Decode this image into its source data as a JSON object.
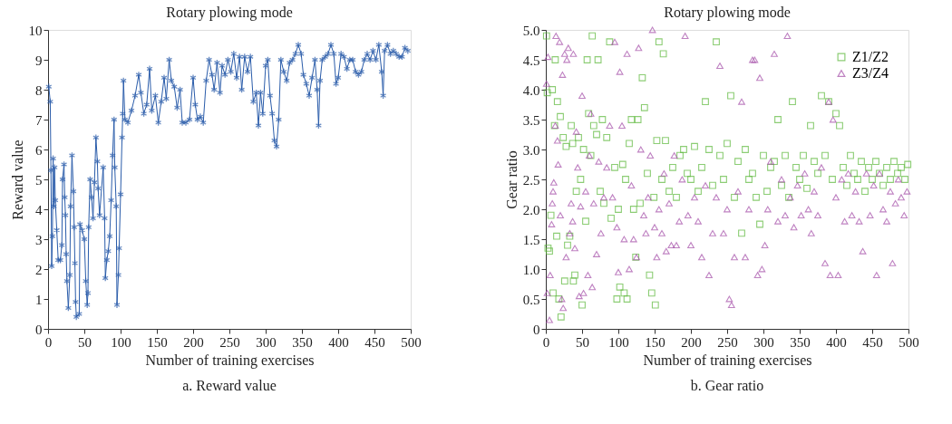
{
  "chart_data": [
    {
      "type": "line",
      "title": "Rotary plowing mode",
      "xlabel": "Number of training exercises",
      "ylabel": "Reward value",
      "annotations": [
        "a. Reward value"
      ],
      "xlim": [
        0,
        500
      ],
      "xticks": [
        0,
        50,
        100,
        150,
        200,
        250,
        300,
        350,
        400,
        450,
        500
      ],
      "ylim": [
        0,
        10
      ],
      "yticks": [
        0,
        1,
        2,
        3,
        4,
        5,
        6,
        7,
        8,
        9,
        10
      ],
      "grid": false,
      "marker": "cross",
      "line_style": "solid",
      "series": [
        {
          "color": "#2a5caa",
          "x": [
            1,
            3,
            4,
            5,
            6,
            7,
            8,
            9,
            10,
            12,
            14,
            17,
            19,
            20,
            22,
            23,
            24,
            25,
            26,
            28,
            30,
            31,
            33,
            35,
            36,
            37,
            38,
            39,
            43,
            44,
            47,
            50,
            52,
            54,
            55,
            56,
            58,
            60,
            62,
            64,
            66,
            68,
            69,
            71,
            76,
            78,
            79,
            81,
            83,
            85,
            87,
            89,
            91,
            92,
            94,
            95,
            97,
            98,
            100,
            102,
            103,
            104,
            106,
            110,
            115,
            120,
            125,
            128,
            132,
            136,
            140,
            143,
            148,
            152,
            156,
            160,
            163,
            167,
            170,
            174,
            178,
            182,
            185,
            190,
            195,
            200,
            203,
            206,
            210,
            214,
            218,
            222,
            226,
            229,
            233,
            237,
            240,
            244,
            248,
            252,
            256,
            260,
            264,
            267,
            271,
            275,
            279,
            283,
            287,
            290,
            293,
            296,
            300,
            303,
            306,
            309,
            312,
            315,
            318,
            321,
            325,
            329,
            333,
            337,
            341,
            345,
            349,
            352,
            356,
            360,
            364,
            368,
            371,
            373,
            375,
            378,
            382,
            386,
            390,
            394,
            397,
            400,
            404,
            408,
            412,
            416,
            420,
            424,
            428,
            432,
            436,
            440,
            444,
            448,
            452,
            456,
            460,
            462,
            464,
            468,
            472,
            476,
            480,
            484,
            488,
            492,
            496
          ],
          "values": [
            8.1,
            7.6,
            5.3,
            2.1,
            3.1,
            5.7,
            4.1,
            5.4,
            4.3,
            3.3,
            2.3,
            2.3,
            2.8,
            5.0,
            5.5,
            4.4,
            3.8,
            2.5,
            1.6,
            0.7,
            1.8,
            4.1,
            5.8,
            4.6,
            3.4,
            2.2,
            0.9,
            0.4,
            0.5,
            3.5,
            3.3,
            3.0,
            1.6,
            0.8,
            1.2,
            3.4,
            5.0,
            4.4,
            3.7,
            4.9,
            6.4,
            5.6,
            4.7,
            3.8,
            5.4,
            3.7,
            1.7,
            2.3,
            2.6,
            3.1,
            4.3,
            5.8,
            7.0,
            5.4,
            4.1,
            0.8,
            1.8,
            2.7,
            4.5,
            6.4,
            7.2,
            8.3,
            7.0,
            6.9,
            7.3,
            7.8,
            8.5,
            7.9,
            7.2,
            7.5,
            8.7,
            7.3,
            7.8,
            6.9,
            7.6,
            8.4,
            7.7,
            9.0,
            8.3,
            8.1,
            7.4,
            8.0,
            6.9,
            6.9,
            7.0,
            8.4,
            7.5,
            7.0,
            7.1,
            6.9,
            8.3,
            9.0,
            8.5,
            8.0,
            8.9,
            7.9,
            8.8,
            8.5,
            9.0,
            8.6,
            9.2,
            8.4,
            9.1,
            8.0,
            9.1,
            8.6,
            9.1,
            7.6,
            7.9,
            6.8,
            7.9,
            7.2,
            8.8,
            9.0,
            7.8,
            7.2,
            6.3,
            6.1,
            7.0,
            9.0,
            8.6,
            8.3,
            8.9,
            9.0,
            9.2,
            9.5,
            9.2,
            8.5,
            8.2,
            7.8,
            8.4,
            9.0,
            8.0,
            6.8,
            8.3,
            9.0,
            9.1,
            9.2,
            9.5,
            9.2,
            8.2,
            8.4,
            9.2,
            9.1,
            8.7,
            9.0,
            9.0,
            8.6,
            8.5,
            8.6,
            9.0,
            9.2,
            9.0,
            9.3,
            9.0,
            9.5,
            8.6,
            7.8,
            9.3,
            9.5,
            9.2,
            9.3,
            9.2,
            9.1,
            9.1,
            9.4,
            9.3
          ]
        }
      ]
    },
    {
      "type": "scatter",
      "title": "Rotary plowing mode",
      "xlabel": "Number of training exercises",
      "ylabel": "Gear ratio",
      "annotations": [
        "b. Gear ratio"
      ],
      "xlim": [
        0,
        500
      ],
      "xticks": [
        0,
        50,
        100,
        150,
        200,
        250,
        300,
        350,
        400,
        450,
        500
      ],
      "ylim": [
        0,
        5
      ],
      "yticks": [
        0,
        {
          "value": 0.5,
          "label": "0.5"
        },
        {
          "value": 1,
          "label": "1.0"
        },
        {
          "value": 1.5,
          "label": "1.5"
        },
        {
          "value": 2,
          "label": "2.0"
        },
        {
          "value": 2.5,
          "label": "2.5"
        },
        {
          "value": 3,
          "label": "3.0"
        },
        {
          "value": 3.5,
          "label": "3.5"
        },
        {
          "value": 4,
          "label": "4.0"
        },
        {
          "value": 4.5,
          "label": "4.5"
        },
        {
          "value": 5,
          "label": "5.0"
        }
      ],
      "grid": false,
      "legend": "top right",
      "series": [
        {
          "name": "Z1/Z2",
          "color": "#5cb83a",
          "marker": "square",
          "x": [
            1,
            2,
            3,
            5,
            7,
            9,
            10,
            12,
            13,
            15,
            16,
            18,
            20,
            21,
            24,
            26,
            28,
            30,
            33,
            35,
            37,
            38,
            40,
            42,
            45,
            48,
            50,
            52,
            55,
            57,
            59,
            62,
            64,
            66,
            70,
            72,
            75,
            78,
            80,
            84,
            88,
            90,
            95,
            98,
            100,
            102,
            106,
            108,
            110,
            112,
            115,
            118,
            121,
            124,
            127,
            130,
            133,
            136,
            140,
            143,
            146,
            149,
            151,
            153,
            156,
            160,
            162,
            165,
            170,
            175,
            180,
            185,
            190,
            195,
            200,
            205,
            210,
            215,
            220,
            225,
            230,
            235,
            240,
            245,
            250,
            255,
            260,
            265,
            270,
            275,
            280,
            285,
            290,
            295,
            300,
            305,
            310,
            315,
            320,
            325,
            330,
            335,
            340,
            345,
            350,
            355,
            360,
            365,
            370,
            375,
            380,
            385,
            390,
            395,
            400,
            405,
            410,
            415,
            420,
            425,
            430,
            435,
            440,
            445,
            450,
            455,
            460,
            465,
            470,
            475,
            480,
            485,
            490,
            495,
            499
          ],
          "values": [
            4.9,
            3.95,
            1.35,
            1.3,
            1.9,
            4.0,
            0.6,
            3.4,
            4.5,
            1.55,
            3.8,
            0.5,
            3.55,
            0.2,
            3.2,
            0.8,
            3.05,
            1.4,
            1.55,
            3.4,
            3.1,
            0.8,
            0.9,
            2.3,
            3.2,
            2.5,
            0.4,
            3.0,
            1.8,
            4.5,
            3.6,
            2.9,
            4.9,
            3.4,
            3.25,
            4.5,
            2.3,
            3.5,
            2.1,
            3.2,
            4.8,
            1.85,
            2.7,
            0.5,
            2.0,
            0.7,
            2.75,
            0.6,
            2.5,
            0.5,
            3.1,
            3.5,
            2.0,
            1.2,
            3.5,
            2.1,
            4.2,
            3.7,
            2.6,
            0.9,
            0.6,
            2.2,
            0.4,
            3.15,
            4.8,
            2.5,
            4.6,
            3.15,
            2.3,
            2.7,
            2.2,
            2.9,
            3.0,
            2.6,
            2.5,
            3.05,
            2.3,
            2.7,
            3.8,
            3.0,
            2.4,
            4.8,
            2.9,
            2.5,
            3.1,
            3.9,
            2.2,
            2.8,
            1.6,
            3.0,
            2.5,
            2.6,
            2.2,
            1.75,
            2.9,
            2.3,
            2.7,
            2.8,
            3.5,
            2.4,
            2.9,
            2.2,
            3.8,
            2.7,
            2.5,
            2.9,
            2.35,
            3.4,
            2.8,
            2.6,
            3.9,
            2.9,
            3.8,
            2.5,
            3.6,
            3.4,
            2.7,
            2.4,
            2.9,
            2.6,
            2.5,
            2.8,
            2.3,
            2.7,
            2.5,
            2.8,
            2.6,
            2.4,
            2.7,
            2.5,
            2.8,
            2.6,
            2.7,
            2.5,
            2.75
          ]
        },
        {
          "name": "Z3/Z4",
          "color": "#a44ea8",
          "marker": "triangle",
          "x": [
            1,
            2,
            3,
            5,
            6,
            8,
            9,
            10,
            11,
            13,
            14,
            16,
            17,
            19,
            20,
            22,
            23,
            24,
            26,
            28,
            29,
            31,
            33,
            35,
            37,
            38,
            40,
            42,
            44,
            46,
            48,
            50,
            52,
            55,
            58,
            60,
            62,
            64,
            66,
            70,
            73,
            76,
            80,
            84,
            88,
            92,
            95,
            98,
            100,
            102,
            105,
            108,
            112,
            115,
            118,
            121,
            125,
            128,
            131,
            135,
            138,
            141,
            144,
            147,
            150,
            153,
            156,
            160,
            163,
            166,
            170,
            173,
            177,
            180,
            184,
            188,
            192,
            196,
            200,
            205,
            210,
            215,
            220,
            225,
            230,
            235,
            240,
            245,
            250,
            253,
            256,
            260,
            265,
            270,
            275,
            280,
            285,
            288,
            292,
            295,
            298,
            302,
            306,
            310,
            315,
            320,
            325,
            330,
            333,
            337,
            342,
            347,
            352,
            357,
            362,
            366,
            370,
            375,
            380,
            385,
            390,
            392,
            396,
            400,
            403,
            408,
            412,
            417,
            422,
            427,
            432,
            437,
            442,
            447,
            452,
            456,
            460,
            465,
            470,
            475,
            478,
            482,
            486,
            490,
            494,
            498
          ],
          "values": [
            4.1,
            0.6,
            4.55,
            0.15,
            0.9,
            1.75,
            2.1,
            2.3,
            2.45,
            3.4,
            4.9,
            3.15,
            2.75,
            4.8,
            1.9,
            0.5,
            4.25,
            0.35,
            4.6,
            1.2,
            4.5,
            4.7,
            1.6,
            2.1,
            1.8,
            4.6,
            1.35,
            3.3,
            2.7,
            0.55,
            2.05,
            3.9,
            0.6,
            2.3,
            0.9,
            2.9,
            3.6,
            0.7,
            2.1,
            1.25,
            2.8,
            1.6,
            2.2,
            2.7,
            3.4,
            2.2,
            4.8,
            1.7,
            0.95,
            4.3,
            3.4,
            1.5,
            4.6,
            1.0,
            2.4,
            1.5,
            1.2,
            4.7,
            3.0,
            1.9,
            1.6,
            2.2,
            2.9,
            5.0,
            1.7,
            1.2,
            2.0,
            1.6,
            2.6,
            1.3,
            2.1,
            1.4,
            2.9,
            1.4,
            1.8,
            2.5,
            4.9,
            1.9,
            1.4,
            2.2,
            1.8,
            1.2,
            2.4,
            0.9,
            1.6,
            2.2,
            4.4,
            1.6,
            2.0,
            0.5,
            0.4,
            1.2,
            2.3,
            3.8,
            1.2,
            2.0,
            4.5,
            4.5,
            0.9,
            4.2,
            1.0,
            1.4,
            2.0,
            2.8,
            4.6,
            1.8,
            2.5,
            1.9,
            4.9,
            2.2,
            1.7,
            2.4,
            1.9,
            2.6,
            2.0,
            1.6,
            2.3,
            1.9,
            2.7,
            1.1,
            3.8,
            0.9,
            3.5,
            2.2,
            0.9,
            2.5,
            1.8,
            2.6,
            1.9,
            2.3,
            1.8,
            1.3,
            2.6,
            1.9,
            2.4,
            0.9,
            2.6,
            2.0,
            1.8,
            2.3,
            1.1,
            2.1,
            2.5,
            2.2,
            1.9,
            2.3
          ]
        }
      ]
    }
  ]
}
